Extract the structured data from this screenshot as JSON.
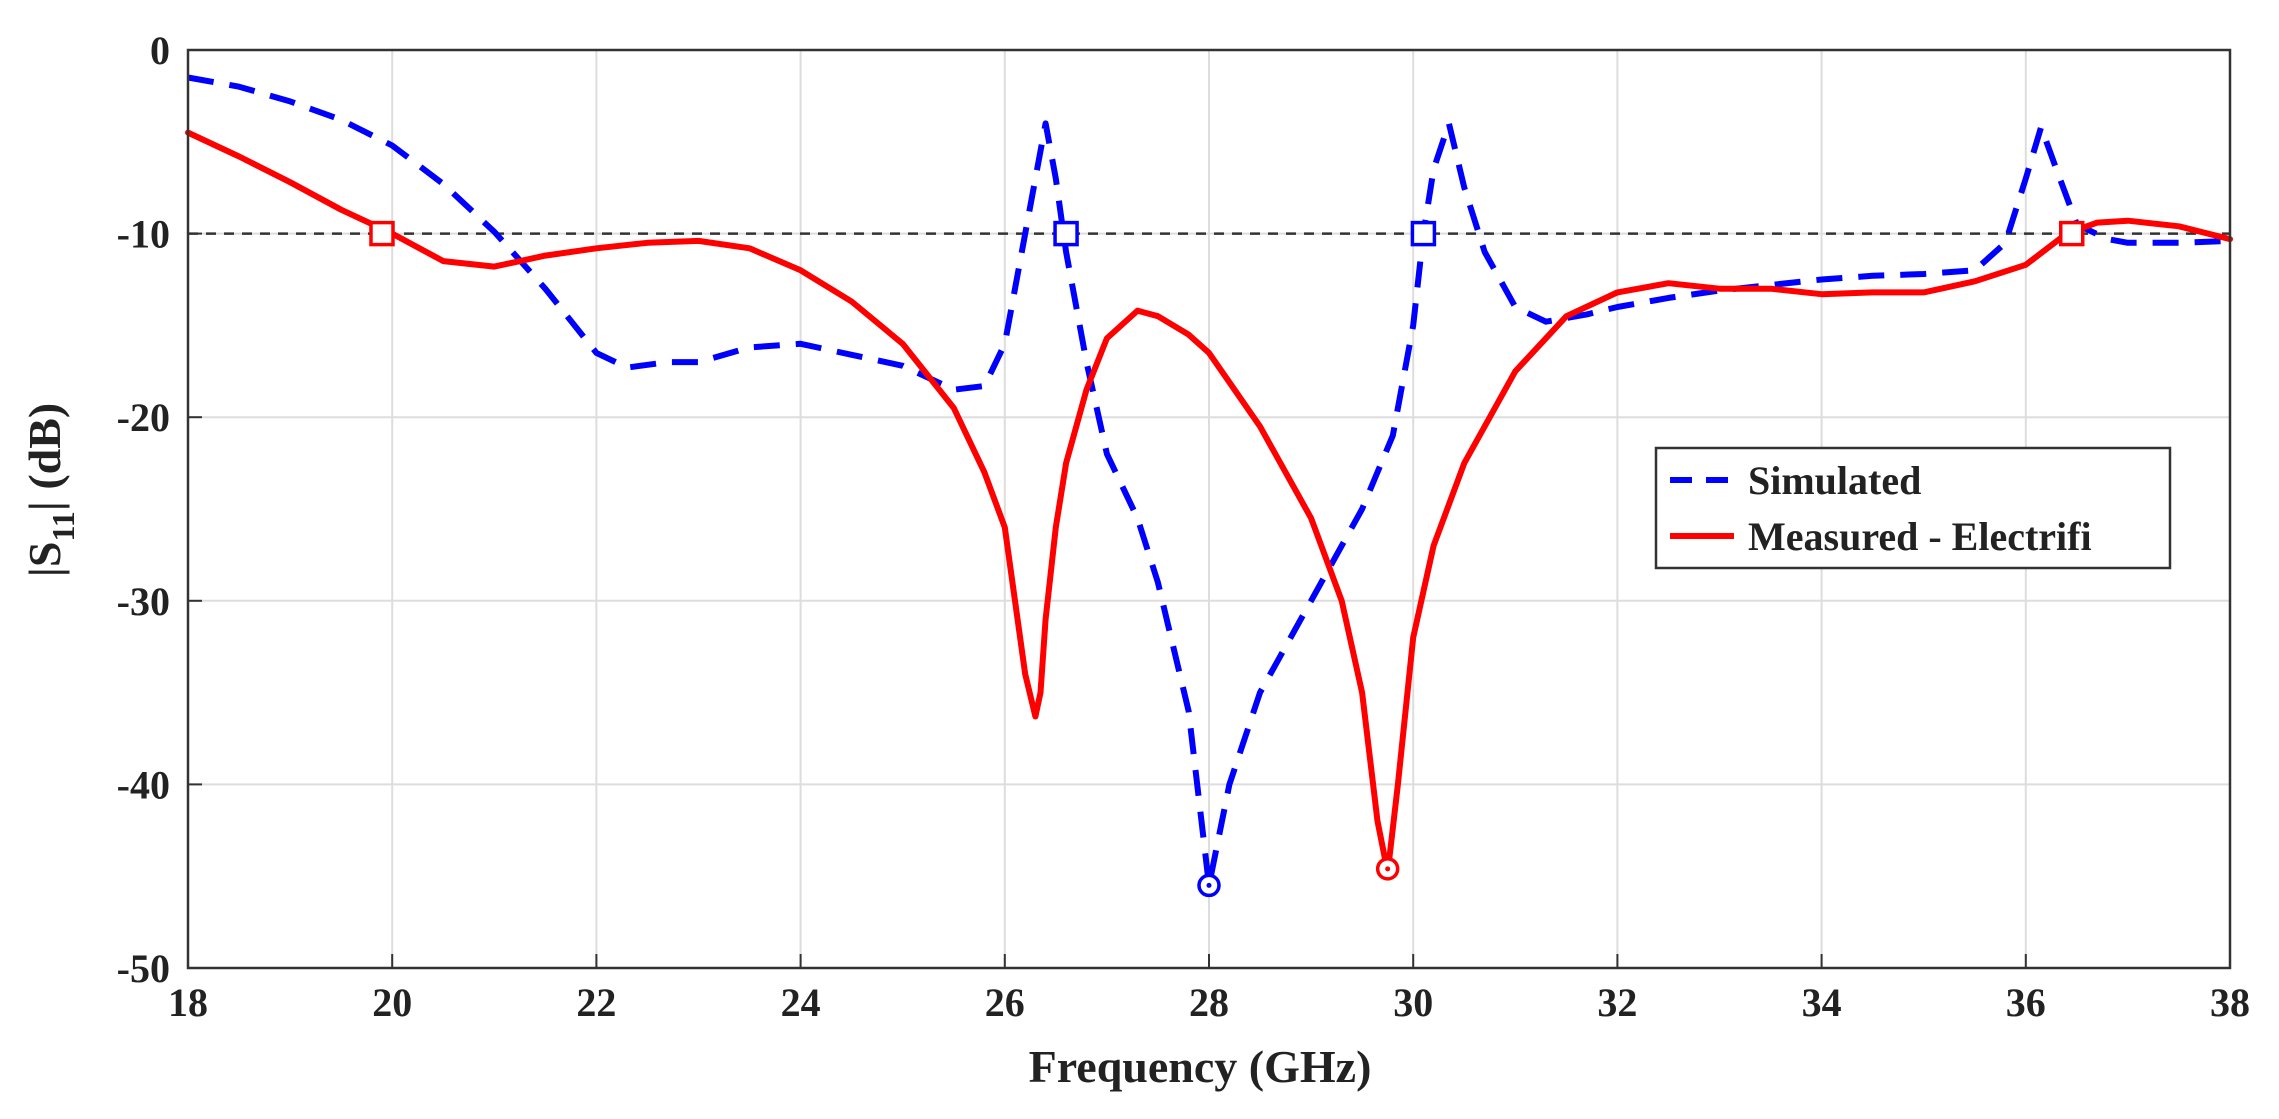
{
  "chart_data": {
    "type": "line",
    "title": "",
    "xlabel": "Frequency (GHz)",
    "ylabel_main": "|S",
    "ylabel_sub": "11",
    "ylabel_tail": "| (dB)",
    "xlim": [
      18,
      38
    ],
    "ylim": [
      -50,
      0
    ],
    "xticks": [
      18,
      20,
      22,
      24,
      26,
      28,
      30,
      32,
      34,
      36,
      38
    ],
    "yticks": [
      0,
      -10,
      -20,
      -30,
      -40,
      -50
    ],
    "grid": true,
    "legend_position": "right-middle",
    "reference_line": {
      "y": -10,
      "color": "#333333",
      "style": "dashed"
    },
    "series": [
      {
        "name": "Simulated",
        "color": "#0000ff",
        "style": "dashed",
        "x": [
          18,
          18.5,
          19,
          19.5,
          20,
          20.5,
          21,
          21.5,
          22,
          22.3,
          22.7,
          23,
          23.5,
          24,
          24.5,
          25,
          25.5,
          25.8,
          26,
          26.2,
          26.4,
          26.5,
          26.6,
          26.8,
          27,
          27.3,
          27.5,
          27.8,
          28,
          28.2,
          28.5,
          29,
          29.5,
          29.8,
          30,
          30.1,
          30.2,
          30.35,
          30.5,
          30.7,
          31,
          31.3,
          31.7,
          32,
          32.5,
          33,
          33.5,
          34,
          34.5,
          35,
          35.5,
          35.8,
          36,
          36.15,
          36.3,
          36.5,
          36.8,
          37,
          37.5,
          38
        ],
        "y": [
          -1.5,
          -2.0,
          -2.8,
          -3.8,
          -5.2,
          -7.3,
          -9.9,
          -13.0,
          -16.5,
          -17.3,
          -17.0,
          -17.0,
          -16.2,
          -16.0,
          -16.6,
          -17.2,
          -18.5,
          -18.3,
          -16.0,
          -10.0,
          -4.0,
          -7.0,
          -11.0,
          -17.0,
          -22.0,
          -25.5,
          -29.0,
          -36.0,
          -45.5,
          -40.0,
          -35.0,
          -30.0,
          -25.0,
          -21.0,
          -15.0,
          -10.0,
          -6.5,
          -4.0,
          -7.5,
          -11.0,
          -14.0,
          -14.8,
          -14.4,
          -14.0,
          -13.5,
          -13.1,
          -12.8,
          -12.5,
          -12.3,
          -12.2,
          -12.0,
          -10.5,
          -7.0,
          -4.2,
          -6.5,
          -9.5,
          -10.3,
          -10.5,
          -10.5,
          -10.4
        ],
        "markers": [
          {
            "x": 26.6,
            "y": -10,
            "shape": "square"
          },
          {
            "x": 30.1,
            "y": -10,
            "shape": "square"
          },
          {
            "x": 28.0,
            "y": -45.5,
            "shape": "circle"
          }
        ]
      },
      {
        "name": "Measured - Electrifi",
        "color": "#ff0000",
        "style": "solid",
        "x": [
          18,
          18.5,
          19,
          19.5,
          20,
          20.5,
          21,
          21.5,
          22,
          22.5,
          23,
          23.5,
          24,
          24.5,
          25,
          25.5,
          25.8,
          26,
          26.1,
          26.2,
          26.3,
          26.35,
          26.4,
          26.5,
          26.6,
          26.8,
          27,
          27.3,
          27.5,
          27.8,
          28,
          28.5,
          29,
          29.3,
          29.5,
          29.65,
          29.75,
          29.85,
          30,
          30.2,
          30.5,
          31,
          31.5,
          32,
          32.5,
          33,
          33.5,
          34,
          34.5,
          35,
          35.5,
          36,
          36.4,
          36.7,
          37,
          37.5,
          38
        ],
        "y": [
          -4.5,
          -5.8,
          -7.2,
          -8.7,
          -10.0,
          -11.5,
          -11.8,
          -11.2,
          -10.8,
          -10.5,
          -10.4,
          -10.8,
          -12.0,
          -13.7,
          -16.0,
          -19.5,
          -23.0,
          -26.0,
          -30.0,
          -34.0,
          -36.3,
          -35.0,
          -31.0,
          -26.0,
          -22.5,
          -18.5,
          -15.7,
          -14.2,
          -14.5,
          -15.5,
          -16.5,
          -20.5,
          -25.5,
          -30.0,
          -35.0,
          -42.0,
          -44.8,
          -40.0,
          -32.0,
          -27.0,
          -22.5,
          -17.5,
          -14.5,
          -13.2,
          -12.7,
          -13.0,
          -13.0,
          -13.3,
          -13.2,
          -13.2,
          -12.6,
          -11.7,
          -10.0,
          -9.4,
          -9.3,
          -9.6,
          -10.3
        ],
        "markers": [
          {
            "x": 19.9,
            "y": -10,
            "shape": "square"
          },
          {
            "x": 36.45,
            "y": -10,
            "shape": "square"
          },
          {
            "x": 29.75,
            "y": -44.6,
            "shape": "circle"
          }
        ]
      }
    ]
  }
}
